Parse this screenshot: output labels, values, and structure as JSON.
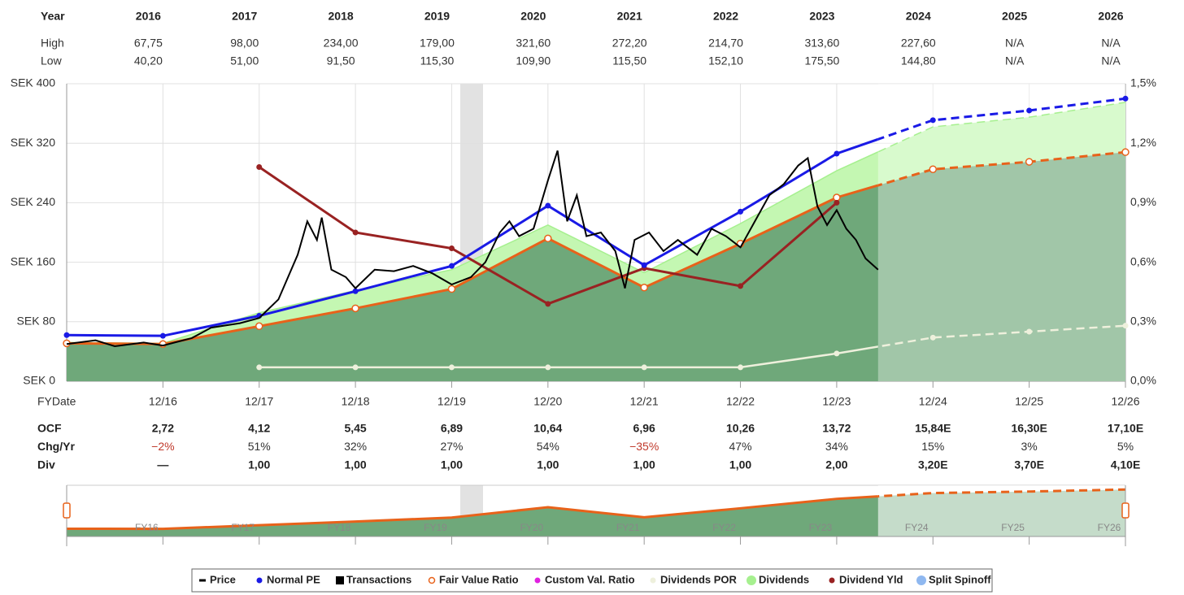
{
  "chart_data": {
    "type": "line",
    "top_table": {
      "header": "Year",
      "columns": [
        "2016",
        "2017",
        "2018",
        "2019",
        "2020",
        "2021",
        "2022",
        "2023",
        "2024",
        "2025",
        "2026"
      ],
      "rows": [
        {
          "label": "High",
          "values": [
            "67,75",
            "98,00",
            "234,00",
            "179,00",
            "321,60",
            "272,20",
            "214,70",
            "313,60",
            "227,60",
            "N/A",
            "N/A"
          ]
        },
        {
          "label": "Low",
          "values": [
            "40,20",
            "51,00",
            "91,50",
            "115,30",
            "109,90",
            "115,50",
            "152,10",
            "175,50",
            "144,80",
            "N/A",
            "N/A"
          ]
        }
      ]
    },
    "x": [
      2015,
      2016,
      2017,
      2018,
      2019,
      2020,
      2021,
      2022,
      2023,
      2024,
      2025,
      2026
    ],
    "xlim": [
      2015,
      2026
    ],
    "xticks": [
      {
        "value": 2016,
        "label": "12/16"
      },
      {
        "value": 2017,
        "label": "12/17"
      },
      {
        "value": 2018,
        "label": "12/18"
      },
      {
        "value": 2019,
        "label": "12/19"
      },
      {
        "value": 2020,
        "label": "12/20"
      },
      {
        "value": 2021,
        "label": "12/21"
      },
      {
        "value": 2022,
        "label": "12/22"
      },
      {
        "value": 2023,
        "label": "12/23"
      },
      {
        "value": 2024,
        "label": "12/24"
      },
      {
        "value": 2025,
        "label": "12/25"
      },
      {
        "value": 2026,
        "label": "12/26"
      }
    ],
    "x_axis_label": "FYDate",
    "ylim": [
      0,
      400
    ],
    "yticks": [
      {
        "value": 0,
        "label": "SEK 0"
      },
      {
        "value": 80,
        "label": "SEK 80"
      },
      {
        "value": 160,
        "label": "SEK 160"
      },
      {
        "value": 240,
        "label": "SEK 240"
      },
      {
        "value": 320,
        "label": "SEK 320"
      },
      {
        "value": 400,
        "label": "SEK 400"
      }
    ],
    "y2lim": [
      0,
      1.5
    ],
    "y2ticks": [
      {
        "value": 0,
        "label": "0,0%"
      },
      {
        "value": 0.3,
        "label": "0,3%"
      },
      {
        "value": 0.6,
        "label": "0,6%"
      },
      {
        "value": 0.9,
        "label": "0,9%"
      },
      {
        "value": 1.2,
        "label": "1,2%"
      },
      {
        "value": 1.5,
        "label": "1,5%"
      }
    ],
    "grid": true,
    "series": [
      {
        "name": "Price",
        "color": "#000000",
        "symbol": "dash",
        "x": [
          2015,
          2015.3,
          2015.5,
          2015.8,
          2016,
          2016.3,
          2016.5,
          2016.8,
          2017,
          2017.2,
          2017.3,
          2017.4,
          2017.5,
          2017.6,
          2017.65,
          2017.75,
          2017.9,
          2018,
          2018.2,
          2018.4,
          2018.6,
          2018.8,
          2019,
          2019.2,
          2019.35,
          2019.5,
          2019.6,
          2019.7,
          2019.85,
          2020,
          2020.1,
          2020.2,
          2020.3,
          2020.4,
          2020.55,
          2020.7,
          2020.8,
          2020.9,
          2021.05,
          2021.2,
          2021.35,
          2021.55,
          2021.7,
          2021.85,
          2022,
          2022.15,
          2022.3,
          2022.45,
          2022.6,
          2022.7,
          2022.8,
          2022.9,
          2023,
          2023.1,
          2023.2,
          2023.3,
          2023.43
        ],
        "values": [
          50,
          55,
          47,
          52,
          48,
          58,
          72,
          78,
          85,
          110,
          140,
          170,
          215,
          190,
          220,
          150,
          140,
          125,
          150,
          148,
          155,
          145,
          130,
          140,
          160,
          200,
          215,
          195,
          205,
          270,
          310,
          215,
          250,
          195,
          200,
          175,
          125,
          190,
          200,
          175,
          190,
          170,
          205,
          195,
          180,
          215,
          250,
          265,
          290,
          300,
          235,
          210,
          230,
          205,
          190,
          165,
          150
        ]
      },
      {
        "name": "Normal PE",
        "color": "#1a1ae6",
        "symbol": "dot",
        "values": [
          62,
          61,
          88,
          121,
          155,
          236,
          156,
          228,
          306,
          351,
          364,
          380
        ]
      },
      {
        "name": "Transactions",
        "color": "#000000",
        "symbol": "square"
      },
      {
        "name": "Fair Value Ratio",
        "color": "#e8621a",
        "symbol": "ring",
        "area_color": "#6fa87a",
        "values": [
          51,
          50,
          74,
          98,
          124,
          192,
          126,
          185,
          247,
          285,
          295,
          308
        ]
      },
      {
        "name": "Custom Val. Ratio",
        "color": "#e020e0",
        "symbol": "dot"
      },
      {
        "name": "Dividends POR",
        "color": "#eef0dc",
        "symbol": "dot",
        "axis": "y2",
        "values": [
          null,
          null,
          0.07,
          0.07,
          0.07,
          0.07,
          0.07,
          0.07,
          0.14,
          0.22,
          0.25,
          0.28
        ]
      },
      {
        "name": "Dividends",
        "color": "#a6f08f",
        "symbol": "dot",
        "area_color": "#c4f7b2",
        "values": [
          52,
          51,
          92,
          122,
          150,
          210,
          146,
          212,
          283,
          342,
          355,
          375
        ]
      },
      {
        "name": "Dividend Yld",
        "color": "#992222",
        "symbol": "dot",
        "axis": "y2",
        "values": [
          null,
          null,
          1.08,
          0.75,
          0.67,
          0.39,
          0.57,
          0.48,
          0.9,
          null,
          null,
          null
        ]
      },
      {
        "name": "Split Spinoff",
        "color": "#8fb8f0",
        "symbol": "dot"
      }
    ],
    "bottom_table": {
      "rows": [
        {
          "label": "OCF",
          "values": [
            "2,72",
            "4,12",
            "5,45",
            "6,89",
            "10,64",
            "6,96",
            "10,26",
            "13,72",
            "15,84E",
            "16,30E",
            "17,10E"
          ]
        },
        {
          "label": "Chg/Yr",
          "values": [
            "−2%",
            "51%",
            "32%",
            "27%",
            "54%",
            "−35%",
            "47%",
            "34%",
            "15%",
            "3%",
            "5%"
          ]
        },
        {
          "label": "Div",
          "values": [
            "—",
            "1,00",
            "1,00",
            "1,00",
            "1,00",
            "1,00",
            "1,00",
            "2,00",
            "3,20E",
            "3,70E",
            "4,10E"
          ]
        }
      ]
    },
    "navigator_labels": [
      "FY16",
      "FY17",
      "FY18",
      "FY19",
      "FY20",
      "FY21",
      "FY22",
      "FY23",
      "FY24",
      "FY25",
      "FY26"
    ]
  }
}
